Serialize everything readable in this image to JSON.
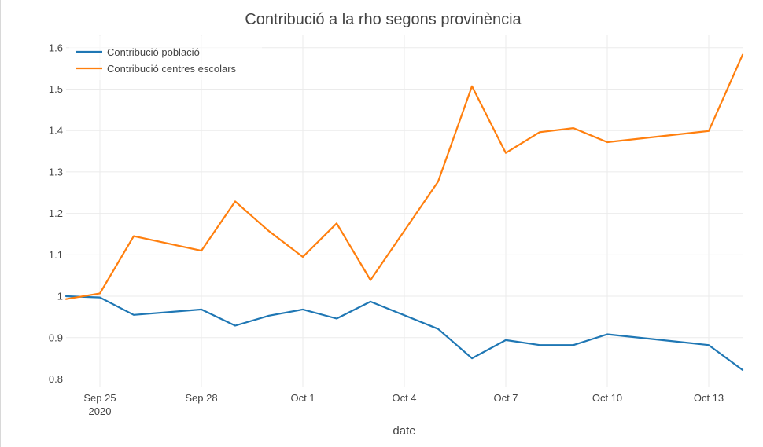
{
  "chart_data": {
    "type": "line",
    "title": "Contribució a la rho segons provinència",
    "xlabel": "date",
    "ylabel": "",
    "x": [
      "2020-09-24",
      "2020-09-25",
      "2020-09-26",
      "2020-09-28",
      "2020-09-29",
      "2020-09-30",
      "2020-10-01",
      "2020-10-02",
      "2020-10-03",
      "2020-10-05",
      "2020-10-06",
      "2020-10-07",
      "2020-10-08",
      "2020-10-09",
      "2020-10-10",
      "2020-10-13",
      "2020-10-14"
    ],
    "series": [
      {
        "name": "Contribució població",
        "color": "#1f77b4",
        "values": [
          1.0,
          0.997,
          0.955,
          0.968,
          0.929,
          0.953,
          0.968,
          0.946,
          0.987,
          0.921,
          0.85,
          0.894,
          0.882,
          0.882,
          0.908,
          0.882,
          0.822
        ]
      },
      {
        "name": "Contribució centres escolars",
        "color": "#ff7f0e",
        "values": [
          0.993,
          1.007,
          1.145,
          1.11,
          1.229,
          1.157,
          1.095,
          1.176,
          1.039,
          1.277,
          1.507,
          1.346,
          1.396,
          1.406,
          1.372,
          1.399,
          1.583
        ]
      }
    ],
    "x_ticks": [
      {
        "date": "2020-09-25",
        "label": "Sep 25",
        "sublabel": "2020"
      },
      {
        "date": "2020-09-28",
        "label": "Sep 28",
        "sublabel": ""
      },
      {
        "date": "2020-10-01",
        "label": "Oct 1",
        "sublabel": ""
      },
      {
        "date": "2020-10-04",
        "label": "Oct 4",
        "sublabel": ""
      },
      {
        "date": "2020-10-07",
        "label": "Oct 7",
        "sublabel": ""
      },
      {
        "date": "2020-10-10",
        "label": "Oct 10",
        "sublabel": ""
      },
      {
        "date": "2020-10-13",
        "label": "Oct 13",
        "sublabel": ""
      }
    ],
    "y_ticks": [
      0.8,
      0.9,
      1,
      1.1,
      1.2,
      1.3,
      1.4,
      1.5,
      1.6
    ],
    "y_tick_labels": [
      "0.8",
      "0.9",
      "1",
      "1.1",
      "1.2",
      "1.3",
      "1.4",
      "1.5",
      "1.6"
    ],
    "xlim": [
      "2020-09-24",
      "2020-10-14"
    ],
    "ylim": [
      0.78,
      1.63
    ],
    "grid": true,
    "legend_position": "top-left"
  }
}
